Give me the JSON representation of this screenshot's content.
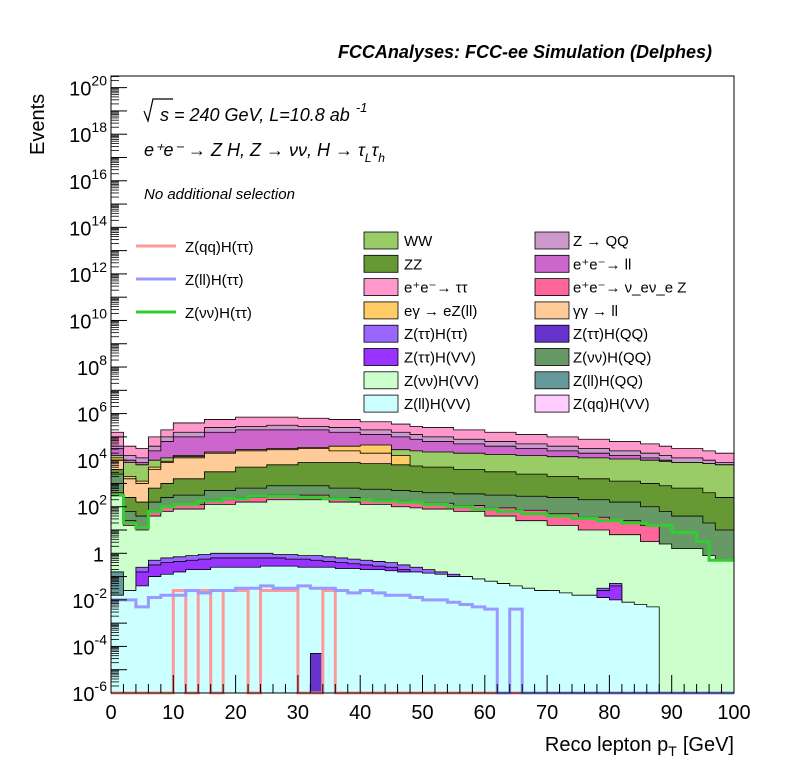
{
  "chart_data": {
    "type": "area",
    "title": "FCCAnalyses: FCC-ee Simulation (Delphes)",
    "xlabel": "Reco lepton p",
    "xlabel_sub": "T",
    "xlabel_unit": "[GeV]",
    "ylabel": "Events",
    "xlim": [
      0,
      100
    ],
    "ylim_exp": [
      -6,
      20.5
    ],
    "log_y": true,
    "x_ticks": [
      "0",
      "10",
      "20",
      "30",
      "40",
      "50",
      "60",
      "70",
      "80",
      "90",
      "100"
    ],
    "y_ticks": [
      {
        "base": "10",
        "exp": "-6",
        "e": -6
      },
      {
        "base": "10",
        "exp": "-4",
        "e": -4
      },
      {
        "base": "10",
        "exp": "-2",
        "e": -2
      },
      {
        "base": "1",
        "exp": "",
        "e": 0
      },
      {
        "base": "10",
        "exp": "2",
        "e": 2
      },
      {
        "base": "10",
        "exp": "4",
        "e": 4
      },
      {
        "base": "10",
        "exp": "6",
        "e": 6
      },
      {
        "base": "10",
        "exp": "8",
        "e": 8
      },
      {
        "base": "10",
        "exp": "10",
        "e": 10
      },
      {
        "base": "10",
        "exp": "12",
        "e": 12
      },
      {
        "base": "10",
        "exp": "14",
        "e": 14
      },
      {
        "base": "10",
        "exp": "16",
        "e": 16
      },
      {
        "base": "10",
        "exp": "18",
        "e": 18
      },
      {
        "base": "10",
        "exp": "20",
        "e": 20
      }
    ],
    "annotations": {
      "energy": "s = 240 GeV, L=10.8 ab",
      "energy_exp": "-1",
      "process": "e⁺e⁻ → Z H, Z → νν, H → τ",
      "process_sub1": "L",
      "process_tau": "τ",
      "process_sub2": "h",
      "selection": "No additional selection"
    },
    "stack_edges": [
      0,
      2,
      4,
      6,
      8,
      10,
      15,
      20,
      25,
      30,
      35,
      40,
      45,
      48,
      50,
      55,
      60,
      65,
      70,
      75,
      80,
      85,
      88,
      90,
      95,
      97,
      100
    ],
    "stack": [
      {
        "name": "Z(νν)H(VV)",
        "color": "#ccffcc",
        "log": [
          2.5,
          1.2,
          1.0,
          1.6,
          1.8,
          1.9,
          2.1,
          2.2,
          2.3,
          2.3,
          2.2,
          2.1,
          2.0,
          1.95,
          1.9,
          1.8,
          1.6,
          1.4,
          1.2,
          1.0,
          0.8,
          0.5,
          0.4,
          0.2,
          -0.1,
          -0.3
        ]
      },
      {
        "name": "e⁺e⁻ → ν_eν_e Z",
        "color": "#ff6699",
        "log": [
          2.6,
          1.4,
          1.1,
          1.8,
          2.0,
          2.1,
          2.3,
          2.4,
          2.5,
          2.5,
          2.4,
          2.3,
          2.25,
          2.2,
          2.15,
          2.05,
          1.95,
          1.85,
          1.7,
          1.55,
          1.4,
          1.2,
          -6,
          -6,
          -6,
          -6
        ]
      },
      {
        "name": "Z(νν)H(QQ)",
        "color": "#669966",
        "log": [
          3.4,
          1.8,
          1.6,
          2.2,
          2.4,
          2.5,
          2.7,
          2.8,
          2.9,
          2.9,
          2.8,
          2.75,
          2.7,
          2.65,
          2.6,
          2.55,
          2.5,
          2.45,
          2.4,
          2.3,
          2.2,
          2.0,
          1.8,
          1.6,
          1.3,
          1.0
        ]
      },
      {
        "name": "ZZ",
        "color": "#669933",
        "log": [
          3.6,
          2.4,
          2.2,
          2.8,
          3.0,
          3.2,
          3.5,
          3.7,
          3.8,
          3.9,
          3.9,
          3.85,
          3.8,
          3.75,
          3.7,
          3.6,
          3.5,
          3.4,
          3.3,
          3.2,
          3.1,
          3.0,
          2.9,
          2.8,
          2.6,
          2.4
        ]
      },
      {
        "name": "γγ → ll",
        "color": "#ffcc99",
        "log": [
          4.0,
          3.2,
          3.0,
          3.6,
          3.9,
          4.1,
          4.3,
          4.4,
          4.45,
          4.5,
          4.4,
          4.3,
          -6,
          -6,
          -6,
          -6,
          -6,
          -6,
          -6,
          -6,
          -6,
          -6,
          -6,
          -6,
          -6,
          -6
        ]
      },
      {
        "name": "eγ → eZ(ll)",
        "color": "#ffcc66",
        "log": [
          4.1,
          3.3,
          3.1,
          3.7,
          3.95,
          4.15,
          4.35,
          4.45,
          4.5,
          4.55,
          4.6,
          4.65,
          4.2,
          -6,
          -6,
          -6,
          -6,
          -6,
          -6,
          -6,
          -6,
          -6,
          -6,
          -6,
          -6,
          -6
        ]
      },
      {
        "name": "WW",
        "color": "#99cc66",
        "log": [
          4.2,
          3.9,
          3.8,
          4.0,
          4.1,
          4.2,
          4.3,
          4.35,
          4.4,
          4.45,
          4.45,
          4.45,
          4.45,
          4.4,
          4.35,
          4.3,
          4.25,
          4.2,
          4.15,
          4.1,
          4.05,
          4.0,
          3.95,
          3.9,
          3.85,
          3.8
        ]
      },
      {
        "name": "e⁺e⁻ → ll",
        "color": "#cc66cc",
        "log": [
          4.5,
          4.0,
          3.9,
          4.4,
          4.8,
          5.0,
          5.2,
          5.3,
          5.3,
          5.3,
          5.2,
          5.1,
          5.0,
          4.9,
          4.8,
          4.7,
          4.6,
          4.5,
          4.4,
          4.3,
          4.2,
          4.1,
          4.0,
          3.9,
          3.85,
          3.8
        ]
      },
      {
        "name": "Z → QQ",
        "color": "#cc99cc",
        "log": [
          4.6,
          4.2,
          4.1,
          4.6,
          5.0,
          5.2,
          5.4,
          5.45,
          5.5,
          5.45,
          5.4,
          5.3,
          5.2,
          5.1,
          5.0,
          4.9,
          4.8,
          4.7,
          4.6,
          4.5,
          4.4,
          4.3,
          4.2,
          4.1,
          4.0,
          3.9
        ]
      },
      {
        "name": "e⁺e⁻ → ττ",
        "color": "#ff99cc",
        "log": [
          5.2,
          4.6,
          4.5,
          5.0,
          5.3,
          5.6,
          5.75,
          5.85,
          5.85,
          5.8,
          5.75,
          5.65,
          5.55,
          5.45,
          5.4,
          5.3,
          5.2,
          5.1,
          5.0,
          4.9,
          4.8,
          4.7,
          4.6,
          4.5,
          4.4,
          4.3
        ]
      }
    ],
    "minor_edges": [
      0,
      2,
      4,
      6,
      8,
      10,
      12,
      14,
      16,
      18,
      20,
      22,
      24,
      26,
      28,
      30,
      32,
      34,
      36,
      38,
      40,
      42,
      44,
      46,
      48,
      50,
      52,
      54,
      56,
      58,
      60,
      62,
      64,
      66,
      68,
      70,
      72,
      74,
      76,
      78,
      80,
      82,
      84,
      86,
      88,
      90,
      92,
      94,
      96,
      98,
      100
    ],
    "minor": [
      {
        "name": "Z(ll)H(VV)",
        "color": "#ccffff",
        "log": [
          -1.8,
          -1.6,
          -1.4,
          -1.0,
          -0.9,
          -0.8,
          -0.7,
          -0.7,
          -0.6,
          -0.6,
          -0.6,
          -0.6,
          -0.55,
          -0.55,
          -0.55,
          -0.6,
          -0.6,
          -0.6,
          -0.65,
          -0.65,
          -0.7,
          -0.7,
          -0.75,
          -0.8,
          -0.8,
          -0.85,
          -0.9,
          -1.0,
          -1.0,
          -1.1,
          -1.2,
          -1.3,
          -1.4,
          -1.5,
          -1.6,
          -1.6,
          -1.7,
          -1.8,
          -1.8,
          -1.9,
          -2.0,
          -2.1,
          -2.2,
          -2.3,
          -6,
          -6,
          -6,
          -6,
          -6,
          -6
        ]
      },
      {
        "name": "Z(ll)H(QQ)",
        "color": "#669999",
        "log": [
          -0.8,
          -6,
          -6,
          -1.5,
          -6,
          -6,
          -1.6,
          -6,
          -6,
          -6,
          -6,
          -1.4,
          -6,
          -6,
          -6,
          -6,
          -6,
          -6,
          -6,
          -1.7,
          -6,
          -6,
          -6,
          -6,
          -6,
          -6,
          -6,
          -6,
          -6,
          -6,
          -6,
          -6,
          -6,
          -6,
          -6,
          -6,
          -6,
          -6,
          -6,
          -6,
          -6,
          -6,
          -6,
          -6,
          -6,
          -6,
          -6,
          -6,
          -6,
          -6
        ]
      },
      {
        "name": "Z(qq)H(VV)",
        "color": "#ffccff",
        "log": [
          -6,
          -2.2,
          -6,
          -6,
          -6,
          -6,
          -6,
          -2.0,
          -6,
          -6,
          -6,
          -6,
          -6,
          -6,
          -6,
          -6,
          -6,
          -6,
          -6,
          -6,
          -6,
          -2.0,
          -6,
          -6,
          -6,
          -6,
          -6,
          -6,
          -6,
          -6,
          -6,
          -6,
          -6,
          -6,
          -6,
          -6,
          -6,
          -6,
          -6,
          -6,
          -6,
          -6,
          -6,
          -6,
          -6,
          -6,
          -6,
          -6,
          -6,
          -6
        ]
      },
      {
        "name": "Z(ττ)H(VV)",
        "color": "#9933ff",
        "log": [
          -6,
          -6,
          -0.8,
          -0.5,
          -0.4,
          -0.35,
          -0.3,
          -0.25,
          -0.2,
          -0.2,
          -0.2,
          -0.2,
          -0.2,
          -0.2,
          -0.25,
          -0.25,
          -0.3,
          -0.35,
          -0.4,
          -0.45,
          -0.5,
          -0.55,
          -0.6,
          -0.7,
          -0.8,
          -0.9,
          -1.0,
          -1.1,
          -1.2,
          -1.3,
          -1.4,
          -1.5,
          -1.6,
          -1.7,
          -1.8,
          -1.9,
          -2.0,
          -2.1,
          -6,
          -1.6,
          -1.4,
          -6,
          -6,
          -6,
          -6,
          -6,
          -6,
          -6,
          -6,
          -6
        ]
      },
      {
        "name": "Z(ττ)H(ττ)",
        "color": "#9966ff",
        "log": [
          -6,
          -6,
          -0.6,
          -0.3,
          -0.2,
          -0.15,
          -0.1,
          -0.05,
          0.0,
          0.0,
          0.0,
          0.0,
          0.0,
          -0.05,
          -0.05,
          -0.1,
          -0.1,
          -0.15,
          -0.2,
          -0.25,
          -0.3,
          -0.35,
          -0.4,
          -0.5,
          -0.6,
          -0.7,
          -0.8,
          -0.9,
          -1.0,
          -1.1,
          -1.2,
          -1.3,
          -1.4,
          -1.5,
          -1.6,
          -1.7,
          -1.8,
          -1.9,
          -6,
          -1.5,
          -1.3,
          -6,
          -6,
          -6,
          -6,
          -6,
          -6,
          -6,
          -6,
          -6
        ]
      }
    ],
    "lines": [
      {
        "name": "Z(qq)H(ττ)",
        "color": "#ff9999",
        "edges": [
          0,
          10,
          12,
          14,
          16,
          18,
          22,
          24,
          30,
          34,
          36,
          100
        ],
        "log": [
          -6,
          -1.6,
          -6,
          -1.6,
          -6,
          -1.6,
          -6,
          -1.6,
          -6,
          -1.6,
          -6
        ]
      },
      {
        "name": "Z(ll)H(ττ)",
        "color": "#9999ff",
        "edges": [
          0,
          4,
          6,
          8,
          10,
          12,
          14,
          16,
          18,
          20,
          22,
          24,
          26,
          28,
          30,
          32,
          34,
          36,
          38,
          40,
          42,
          44,
          46,
          48,
          50,
          52,
          54,
          56,
          58,
          60,
          62,
          64,
          66,
          100
        ],
        "log": [
          -2.0,
          -2.3,
          -1.9,
          -1.8,
          -1.8,
          -1.6,
          -1.7,
          -1.6,
          -1.6,
          -1.5,
          -1.5,
          -1.4,
          -1.5,
          -1.5,
          -1.4,
          -1.5,
          -1.5,
          -1.6,
          -1.7,
          -1.6,
          -1.7,
          -1.8,
          -1.8,
          -1.9,
          -2.0,
          -2.0,
          -2.1,
          -2.2,
          -2.3,
          -2.4,
          -6,
          -2.4,
          -6
        ]
      },
      {
        "name": "Z(νν)H(ττ)",
        "color": "#33cc33",
        "edges": [
          0,
          2,
          4,
          6,
          8,
          10,
          14,
          18,
          22,
          26,
          30,
          34,
          38,
          42,
          46,
          50,
          54,
          58,
          62,
          66,
          70,
          74,
          78,
          82,
          86,
          90,
          94,
          96,
          98,
          100
        ],
        "log": [
          2.5,
          1.3,
          1.1,
          1.8,
          2.0,
          2.1,
          2.25,
          2.35,
          2.45,
          2.45,
          2.4,
          2.35,
          2.3,
          2.25,
          2.2,
          2.1,
          2.0,
          1.9,
          1.8,
          1.7,
          1.6,
          1.5,
          1.4,
          1.3,
          1.2,
          0.9,
          0.5,
          -0.3,
          -0.3
        ]
      }
    ],
    "legend": {
      "left": [
        "Z(qq)H(ττ)",
        "Z(ll)H(ττ)",
        "Z(νν)H(ττ)"
      ],
      "col1": [
        {
          "label": "WW",
          "color": "#99cc66"
        },
        {
          "label": "ZZ",
          "color": "#669933"
        },
        {
          "label": "e⁺e⁻→ ττ",
          "color": "#ff99cc"
        },
        {
          "label": "eγ → eZ(ll)",
          "color": "#ffcc66"
        },
        {
          "label": "Z(ττ)H(ττ)",
          "color": "#9966ff"
        },
        {
          "label": "Z(ττ)H(VV)",
          "color": "#9933ff"
        },
        {
          "label": "Z(νν)H(VV)",
          "color": "#ccffcc"
        },
        {
          "label": "Z(ll)H(VV)",
          "color": "#ccffff"
        }
      ],
      "col2": [
        {
          "label": "Z → QQ",
          "color": "#cc99cc"
        },
        {
          "label": "e⁺e⁻→ ll",
          "color": "#cc66cc"
        },
        {
          "label": "e⁺e⁻→ ν_eν_e Z",
          "color": "#ff6699"
        },
        {
          "label": "γγ → ll",
          "color": "#ffcc99"
        },
        {
          "label": "Z(ττ)H(QQ)",
          "color": "#6633cc"
        },
        {
          "label": "Z(νν)H(QQ)",
          "color": "#669966"
        },
        {
          "label": "Z(ll)H(QQ)",
          "color": "#669999"
        },
        {
          "label": "Z(qq)H(VV)",
          "color": "#ffccff"
        }
      ]
    }
  }
}
